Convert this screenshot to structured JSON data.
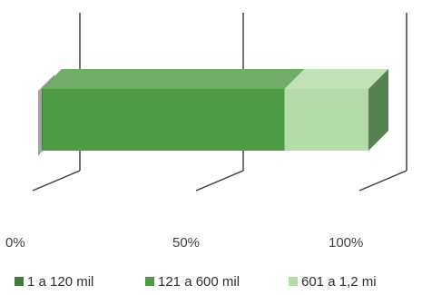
{
  "chart_data": {
    "type": "bar",
    "orientation": "horizontal",
    "stacked": true,
    "percent_stacked": true,
    "three_d": true,
    "categories": [
      ""
    ],
    "series": [
      {
        "name": "1 a 120 mil",
        "values": [
          0.3
        ],
        "color": "#3e7d3d"
      },
      {
        "name": "121 a 600 mil",
        "values": [
          74.0
        ],
        "color": "#4f9a44"
      },
      {
        "name": "601 a 1,2 mi",
        "values": [
          25.7
        ],
        "color": "#b5dba9"
      }
    ],
    "xlim": [
      0,
      100
    ],
    "x_ticks": [
      0,
      50,
      100
    ],
    "x_tick_labels": [
      "0%",
      "50%",
      "100%"
    ],
    "grid": true,
    "legend_position": "bottom",
    "title": "",
    "xlabel": "",
    "ylabel": ""
  }
}
